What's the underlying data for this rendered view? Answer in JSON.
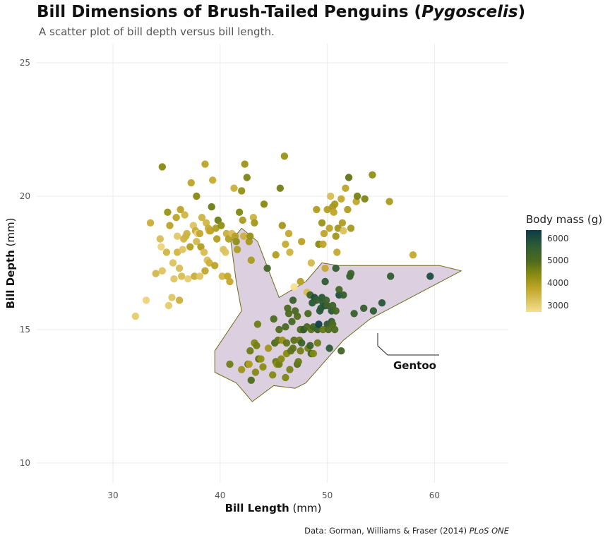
{
  "title_main": "Bill Dimensions of Brush-Tailed Penguins (",
  "title_italic": "Pygoscelis",
  "title_end": ")",
  "subtitle": "A scatter plot of bill depth versus bill length.",
  "caption_main": "Data: Gorman, Williams & Fraser (2014) ",
  "caption_italic": "PLoS ONE",
  "legend": {
    "title": "Body mass (g)",
    "ticks": [
      "6000",
      "5000",
      "4000",
      "3000"
    ]
  },
  "annotation": "Gentoo",
  "chart_data": {
    "type": "scatter",
    "xlabel_bold": "Bill Length",
    "xlabel_unit": "(mm)",
    "ylabel_bold": "Bill Depth",
    "ylabel_unit": "(mm)",
    "xlim": [
      23,
      67
    ],
    "ylim": [
      9,
      26
    ],
    "xticks": [
      30,
      40,
      50,
      60
    ],
    "yticks": [
      10,
      15,
      20,
      25
    ],
    "grid": true,
    "color_scale": {
      "name": "Body mass (g)",
      "min": 2700,
      "max": 6400
    },
    "gentoo_hull": [
      [
        42,
        18.8
      ],
      [
        43.5,
        18.3
      ],
      [
        45.5,
        16.2
      ],
      [
        48,
        16.8
      ],
      [
        49.5,
        17.5
      ],
      [
        51,
        17.4
      ],
      [
        60.5,
        17.4
      ],
      [
        62.5,
        17.2
      ],
      [
        54,
        15.4
      ],
      [
        51.5,
        14.6
      ],
      [
        48,
        13
      ],
      [
        47,
        12.8
      ],
      [
        45,
        12.9
      ],
      [
        43,
        12.3
      ],
      [
        41.5,
        13
      ],
      [
        39.5,
        13.4
      ],
      [
        39.5,
        14.2
      ],
      [
        42,
        15.7
      ],
      [
        41.5,
        16.8
      ],
      [
        41,
        18.3
      ]
    ],
    "points": [
      [
        32.1,
        15.5,
        3050
      ],
      [
        33.1,
        16.1,
        2900
      ],
      [
        33.5,
        19.0,
        3600
      ],
      [
        34.0,
        17.1,
        3400
      ],
      [
        34.4,
        18.4,
        3325
      ],
      [
        34.5,
        18.1,
        2900
      ],
      [
        34.6,
        21.1,
        4400
      ],
      [
        34.6,
        17.2,
        3200
      ],
      [
        35.0,
        17.9,
        3450
      ],
      [
        35.1,
        19.4,
        4200
      ],
      [
        35.2,
        15.9,
        3050
      ],
      [
        35.3,
        18.9,
        3800
      ],
      [
        35.5,
        16.2,
        3150
      ],
      [
        35.6,
        17.5,
        3200
      ],
      [
        35.7,
        16.9,
        3150
      ],
      [
        35.9,
        19.2,
        3800
      ],
      [
        36.0,
        17.9,
        3450
      ],
      [
        36.0,
        18.5,
        3100
      ],
      [
        36.2,
        17.3,
        3300
      ],
      [
        36.2,
        16.1,
        3550
      ],
      [
        36.3,
        19.5,
        3800
      ],
      [
        36.4,
        17.0,
        3325
      ],
      [
        36.5,
        18.0,
        3150
      ],
      [
        36.6,
        18.4,
        3475
      ],
      [
        36.7,
        19.3,
        3450
      ],
      [
        36.8,
        18.5,
        3500
      ],
      [
        36.9,
        18.6,
        3500
      ],
      [
        37.0,
        16.9,
        3000
      ],
      [
        37.2,
        18.1,
        3900
      ],
      [
        37.3,
        20.5,
        3775
      ],
      [
        37.5,
        18.9,
        3200
      ],
      [
        37.6,
        17.0,
        3600
      ],
      [
        37.7,
        18.7,
        3600
      ],
      [
        37.8,
        18.3,
        3400
      ],
      [
        37.8,
        20.0,
        4400
      ],
      [
        37.9,
        18.6,
        2925
      ],
      [
        38.1,
        18.6,
        3700
      ],
      [
        38.1,
        17.0,
        3175
      ],
      [
        38.2,
        18.1,
        3950
      ],
      [
        38.3,
        19.2,
        3500
      ],
      [
        38.5,
        17.9,
        3325
      ],
      [
        38.6,
        21.2,
        3800
      ],
      [
        38.6,
        17.2,
        3750
      ],
      [
        38.7,
        19.0,
        3450
      ],
      [
        38.8,
        17.6,
        3275
      ],
      [
        38.9,
        18.8,
        3600
      ],
      [
        39.0,
        17.5,
        3550
      ],
      [
        39.0,
        18.7,
        3650
      ],
      [
        39.1,
        18.7,
        3750
      ],
      [
        39.2,
        19.6,
        4675
      ],
      [
        39.3,
        20.6,
        3650
      ],
      [
        39.5,
        17.4,
        3800
      ],
      [
        39.6,
        18.8,
        3950
      ],
      [
        39.7,
        18.4,
        3900
      ],
      [
        39.8,
        19.1,
        4650
      ],
      [
        40.1,
        18.9,
        4300
      ],
      [
        40.2,
        17.0,
        3450
      ],
      [
        40.3,
        18.0,
        3250
      ],
      [
        40.5,
        17.9,
        3200
      ],
      [
        40.6,
        18.6,
        3550
      ],
      [
        40.7,
        17.0,
        3725
      ],
      [
        40.8,
        18.4,
        3900
      ],
      [
        40.9,
        16.8,
        3700
      ],
      [
        41.1,
        18.6,
        3300
      ],
      [
        41.3,
        20.3,
        3550
      ],
      [
        41.4,
        18.5,
        3875
      ],
      [
        41.5,
        18.3,
        4300
      ],
      [
        41.6,
        18.0,
        3950
      ],
      [
        41.8,
        19.4,
        4450
      ],
      [
        42.0,
        20.2,
        4250
      ],
      [
        42.1,
        19.1,
        4000
      ],
      [
        42.2,
        18.5,
        3550
      ],
      [
        42.3,
        21.2,
        4150
      ],
      [
        42.5,
        20.7,
        4500
      ],
      [
        42.7,
        18.3,
        4075
      ],
      [
        42.8,
        18.5,
        4250
      ],
      [
        42.9,
        17.6,
        4000
      ],
      [
        43.1,
        19.2,
        3500
      ],
      [
        43.2,
        19.0,
        4100
      ],
      [
        44.1,
        19.7,
        4400
      ],
      [
        45.2,
        17.8,
        3950
      ],
      [
        45.6,
        20.3,
        4600
      ],
      [
        45.8,
        18.9,
        4100
      ],
      [
        46.0,
        21.5,
        4200
      ],
      [
        46.1,
        18.2,
        3650
      ],
      [
        46.4,
        18.6,
        3700
      ],
      [
        46.5,
        17.9,
        3500
      ],
      [
        46.9,
        16.6,
        2700
      ],
      [
        47.5,
        16.8,
        3900
      ],
      [
        47.6,
        18.3,
        3850
      ],
      [
        48.1,
        16.4,
        3325
      ],
      [
        48.5,
        17.5,
        3400
      ],
      [
        49.0,
        19.5,
        3950
      ],
      [
        49.2,
        18.2,
        4400
      ],
      [
        49.5,
        19.0,
        4200
      ],
      [
        49.6,
        18.2,
        3775
      ],
      [
        49.7,
        18.6,
        3775
      ],
      [
        49.8,
        17.3,
        3675
      ],
      [
        50.0,
        19.5,
        3900
      ],
      [
        50.2,
        18.8,
        3800
      ],
      [
        50.3,
        20.0,
        3300
      ],
      [
        50.5,
        19.6,
        4050
      ],
      [
        50.6,
        19.4,
        3750
      ],
      [
        50.7,
        19.7,
        4050
      ],
      [
        50.8,
        18.5,
        4100
      ],
      [
        50.9,
        17.9,
        3675
      ],
      [
        51.0,
        18.8,
        4100
      ],
      [
        51.3,
        19.9,
        3700
      ],
      [
        51.4,
        19.0,
        3950
      ],
      [
        51.5,
        18.7,
        3250
      ],
      [
        51.7,
        20.3,
        3775
      ],
      [
        51.9,
        19.5,
        3950
      ],
      [
        52.0,
        20.7,
        4800
      ],
      [
        52.2,
        18.8,
        4050
      ],
      [
        52.7,
        19.8,
        3725
      ],
      [
        52.8,
        20.0,
        4550
      ],
      [
        53.5,
        19.9,
        4500
      ],
      [
        54.2,
        20.8,
        4300
      ],
      [
        55.8,
        19.8,
        4000
      ],
      [
        58.0,
        17.8,
        3700
      ],
      [
        40.9,
        13.7,
        4650
      ],
      [
        42.0,
        13.5,
        4150
      ],
      [
        42.6,
        13.7,
        4950
      ],
      [
        42.7,
        13.7,
        3950
      ],
      [
        42.8,
        14.2,
        4700
      ],
      [
        42.9,
        13.1,
        5000
      ],
      [
        43.2,
        14.5,
        4450
      ],
      [
        43.3,
        13.4,
        4400
      ],
      [
        43.4,
        14.4,
        4600
      ],
      [
        43.5,
        15.2,
        4650
      ],
      [
        43.6,
        13.9,
        4900
      ],
      [
        43.8,
        13.9,
        4300
      ],
      [
        44.0,
        13.6,
        4350
      ],
      [
        44.4,
        17.3,
        5250
      ],
      [
        44.5,
        14.3,
        4100
      ],
      [
        44.9,
        13.3,
        4400
      ],
      [
        45.0,
        15.4,
        5050
      ],
      [
        45.1,
        14.5,
        5000
      ],
      [
        45.2,
        13.8,
        4750
      ],
      [
        45.3,
        13.7,
        4300
      ],
      [
        45.4,
        14.6,
        4800
      ],
      [
        45.5,
        13.7,
        4650
      ],
      [
        45.5,
        15.0,
        5000
      ],
      [
        45.7,
        13.9,
        4400
      ],
      [
        45.8,
        14.6,
        4200
      ],
      [
        46.1,
        13.2,
        4500
      ],
      [
        46.1,
        15.1,
        5100
      ],
      [
        46.2,
        14.5,
        4800
      ],
      [
        46.2,
        14.1,
        4375
      ],
      [
        46.3,
        15.8,
        5050
      ],
      [
        46.4,
        15.6,
        5000
      ],
      [
        46.5,
        13.5,
        4550
      ],
      [
        46.6,
        14.2,
        4850
      ],
      [
        46.7,
        15.3,
        5200
      ],
      [
        46.8,
        14.3,
        4850
      ],
      [
        46.8,
        16.1,
        5500
      ],
      [
        46.9,
        14.6,
        4875
      ],
      [
        47.0,
        15.7,
        5150
      ],
      [
        47.2,
        13.7,
        4925
      ],
      [
        47.2,
        15.5,
        4975
      ],
      [
        47.3,
        13.8,
        4725
      ],
      [
        47.4,
        14.6,
        4725
      ],
      [
        47.5,
        14.2,
        4600
      ],
      [
        47.5,
        15.0,
        5076
      ],
      [
        47.6,
        14.5,
        5400
      ],
      [
        47.7,
        15.0,
        4750
      ],
      [
        47.8,
        15.0,
        5650
      ],
      [
        48.1,
        15.1,
        5100
      ],
      [
        48.2,
        14.3,
        4600
      ],
      [
        48.2,
        15.6,
        5100
      ],
      [
        48.4,
        14.4,
        5400
      ],
      [
        48.4,
        16.3,
        5400
      ],
      [
        48.5,
        14.1,
        5300
      ],
      [
        48.5,
        15.0,
        4850
      ],
      [
        48.6,
        16.0,
        5800
      ],
      [
        48.7,
        14.1,
        4450
      ],
      [
        48.7,
        15.1,
        5350
      ],
      [
        48.8,
        16.2,
        6000
      ],
      [
        49.0,
        16.1,
        5550
      ],
      [
        49.1,
        14.5,
        4625
      ],
      [
        49.1,
        15.0,
        5500
      ],
      [
        49.2,
        15.2,
        6300
      ],
      [
        49.3,
        15.7,
        5850
      ],
      [
        49.4,
        15.8,
        5800
      ],
      [
        49.5,
        16.2,
        5800
      ],
      [
        49.6,
        15.0,
        4750
      ],
      [
        49.6,
        16.0,
        5700
      ],
      [
        49.8,
        15.9,
        5950
      ],
      [
        49.8,
        16.8,
        5700
      ],
      [
        49.9,
        16.1,
        5400
      ],
      [
        50.0,
        15.2,
        5700
      ],
      [
        50.0,
        15.9,
        5350
      ],
      [
        50.1,
        15.0,
        5000
      ],
      [
        50.2,
        14.3,
        5700
      ],
      [
        50.4,
        15.3,
        5550
      ],
      [
        50.4,
        15.7,
        5750
      ],
      [
        50.5,
        15.2,
        5000
      ],
      [
        50.5,
        15.9,
        5400
      ],
      [
        50.7,
        15.0,
        5050
      ],
      [
        50.8,
        15.7,
        5200
      ],
      [
        50.8,
        17.3,
        5600
      ],
      [
        51.1,
        16.3,
        6000
      ],
      [
        51.1,
        16.5,
        5250
      ],
      [
        51.3,
        14.2,
        5300
      ],
      [
        51.5,
        16.3,
        5500
      ],
      [
        52.1,
        17.0,
        5550
      ],
      [
        52.2,
        17.1,
        5400
      ],
      [
        52.5,
        15.6,
        5450
      ],
      [
        53.4,
        15.8,
        5500
      ],
      [
        54.3,
        15.7,
        5650
      ],
      [
        55.1,
        16.0,
        5850
      ],
      [
        55.9,
        17.0,
        5600
      ],
      [
        59.6,
        17.0,
        6050
      ]
    ]
  }
}
